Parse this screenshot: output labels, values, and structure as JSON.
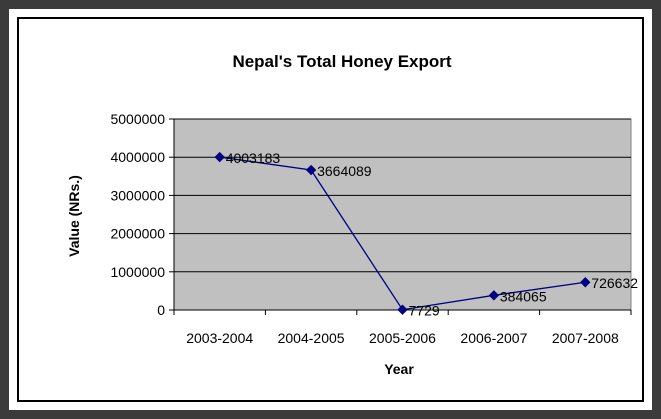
{
  "chart_data": {
    "type": "line",
    "title": "Nepal's Total Honey Export",
    "xlabel": "Year",
    "ylabel": "Value (NRs.)",
    "categories": [
      "2003-2004",
      "2004-2005",
      "2005-2006",
      "2006-2007",
      "2007-2008"
    ],
    "series": [
      {
        "values": [
          4003183,
          3664089,
          7729,
          384065,
          726632
        ],
        "color": "#000080",
        "marker": "diamond"
      }
    ],
    "ylim": [
      0,
      5000000
    ],
    "yticks": [
      "0",
      "1000000",
      "2000000",
      "3000000",
      "4000000",
      "5000000"
    ],
    "data_labels": [
      "4003183",
      "3664089",
      "7729",
      "384065",
      "726632"
    ],
    "plot_background": "#c0c0c0",
    "grid": true,
    "legend": "none"
  }
}
